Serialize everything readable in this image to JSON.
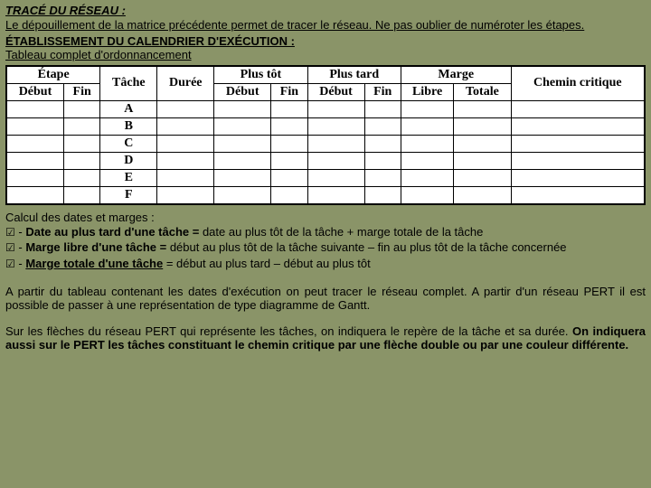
{
  "section1": {
    "title": "TRACÉ DU RÉSEAU :",
    "text": "Le dépouillement de la matrice précédente permet de tracer le réseau. Ne pas oublier de numéroter les étapes."
  },
  "section2": {
    "title": "ÉTABLISSEMENT DU CALENDRIER D'EXÉCUTION :",
    "subtitle": "Tableau complet d'ordonnancement"
  },
  "table": {
    "headers": {
      "etape": "Étape",
      "debut": "Début",
      "fin": "Fin",
      "tache": "Tâche",
      "duree": "Durée",
      "plustot": "Plus tôt",
      "plustard": "Plus tard",
      "marge": "Marge",
      "libre": "Libre",
      "totale": "Totale",
      "chemin": "Chemin critique"
    },
    "tasks": [
      "A",
      "B",
      "C",
      "D",
      "E",
      "F"
    ]
  },
  "calc": {
    "intro": "Calcul des dates et marges :",
    "b1_label": "Date au plus tard d'une tâche =",
    "b1_rest": " date au plus tôt de la tâche + marge totale de la tâche",
    "b2_label": "Marge libre d'une tâche =",
    "b2_rest": " début au plus tôt de la tâche suivante – fin au plus tôt de la tâche concernée",
    "b3_label": "Marge totale d'une tâche",
    "b3_rest": " = début au plus tard – début au plus tôt"
  },
  "para2": "A partir du tableau contenant les dates d'exécution on peut tracer le réseau complet. A partir d'un réseau PERT il est possible de passer à une représentation de type diagramme de Gantt.",
  "para3_start": "Sur les flèches du réseau PERT qui représente les tâches, on indiquera le repère de la tâche et sa durée. ",
  "para3_bold": "On indiquera aussi sur le PERT les tâches constituant le chemin critique par une flèche double ou par une couleur différente.",
  "check": "☑",
  "dash": " - "
}
